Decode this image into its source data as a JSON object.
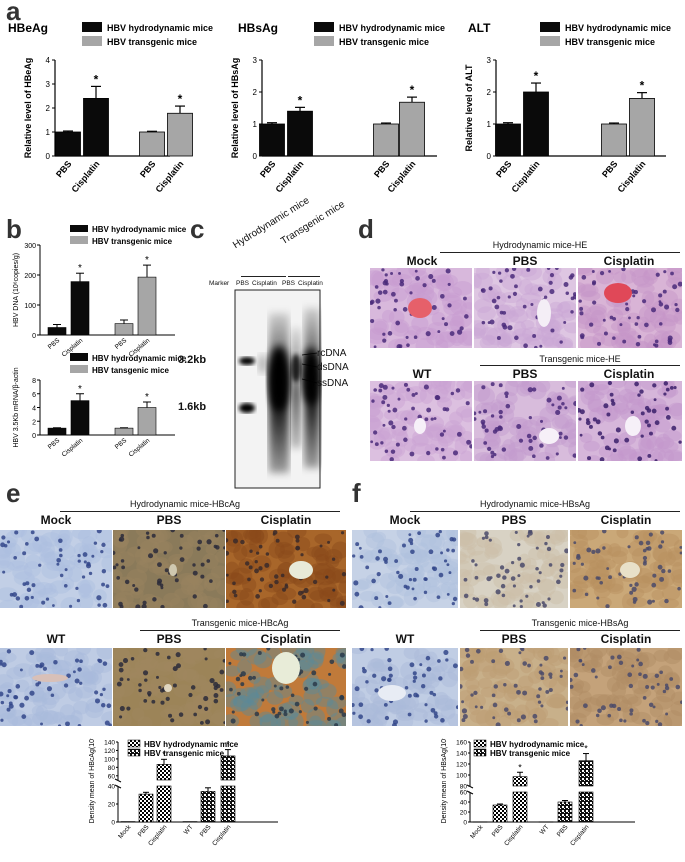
{
  "panels": {
    "a": "a",
    "b": "b",
    "c": "c",
    "d": "d",
    "e": "e",
    "f": "f"
  },
  "colors": {
    "black": "#0a0a0a",
    "gray": "#a6a6a6"
  },
  "chart_data": [
    {
      "type": "bar",
      "id": "a1",
      "title": "HBeAg",
      "ylabel": "Relative level of HBeAg",
      "ylim": [
        0,
        4
      ],
      "yticks": [
        "0",
        "1",
        "2",
        "3",
        "4"
      ],
      "categories": [
        "PBS",
        "Cisplatin",
        "PBS",
        "Cisplatin"
      ],
      "series": [
        {
          "name": "HBV hydrodynamic mice",
          "values": [
            1.0,
            2.4,
            null,
            null
          ],
          "errors": [
            0.04,
            0.5,
            null,
            null
          ]
        },
        {
          "name": "HBV transgenic mice",
          "values": [
            null,
            null,
            1.0,
            1.78
          ],
          "errors": [
            null,
            null,
            0.03,
            0.3
          ]
        }
      ],
      "annotations": [
        "*",
        "*"
      ]
    },
    {
      "type": "bar",
      "id": "a2",
      "title": "HBsAg",
      "ylabel": "Relative level of HBsAg",
      "ylim": [
        0,
        3
      ],
      "yticks": [
        "0",
        "1",
        "2",
        "3"
      ],
      "categories": [
        "PBS",
        "Cisplatin",
        "PBS",
        "Cisplatin"
      ],
      "series": [
        {
          "name": "HBV hydrodynamic mice",
          "values": [
            1.0,
            1.4,
            null,
            null
          ],
          "errors": [
            0.04,
            0.12,
            null,
            null
          ]
        },
        {
          "name": "HBV transgenic mice",
          "values": [
            null,
            null,
            1.0,
            1.68
          ],
          "errors": [
            null,
            null,
            0.03,
            0.16
          ]
        }
      ],
      "annotations": [
        "*",
        "*"
      ]
    },
    {
      "type": "bar",
      "id": "a3",
      "title": "ALT",
      "ylabel": "Relative level of ALT",
      "ylim": [
        0,
        3
      ],
      "yticks": [
        "0",
        "1",
        "2",
        "3"
      ],
      "categories": [
        "PBS",
        "Cisplatin",
        "PBS",
        "Cisplatin"
      ],
      "series": [
        {
          "name": "HBV hydrodynamic mice",
          "values": [
            1.0,
            2.0,
            null,
            null
          ],
          "errors": [
            0.04,
            0.28,
            null,
            null
          ]
        },
        {
          "name": "HBV transgenic mice",
          "values": [
            null,
            null,
            1.0,
            1.8
          ],
          "errors": [
            null,
            null,
            0.03,
            0.18
          ]
        }
      ],
      "annotations": [
        "*",
        "*"
      ]
    },
    {
      "type": "bar",
      "id": "b1",
      "title": "",
      "ylabel": "HBV DNA (10⁶copies/g)",
      "ylim": [
        0,
        300
      ],
      "yticks": [
        "0",
        "100",
        "200",
        "300"
      ],
      "categories": [
        "PBS",
        "Cisplatin",
        "PBS",
        "Cisplatin"
      ],
      "series": [
        {
          "name": "HBV hydrodynamic mice",
          "values": [
            25,
            178,
            null,
            null
          ],
          "errors": [
            10,
            28,
            null,
            null
          ]
        },
        {
          "name": "HBV transgenic mice",
          "values": [
            null,
            null,
            38,
            193
          ],
          "errors": [
            null,
            null,
            12,
            40
          ]
        }
      ],
      "annotations": [
        "*",
        "*"
      ]
    },
    {
      "type": "bar",
      "id": "b2",
      "title": "",
      "ylabel": "HBV 3.5Kb mRNA/β-actin",
      "ylim": [
        0,
        8
      ],
      "yticks": [
        "0",
        "2",
        "4",
        "6",
        "8"
      ],
      "categories": [
        "PBS",
        "Cisplatin",
        "PBS",
        "Cisplatin"
      ],
      "series": [
        {
          "name": "HBV hydrodynamic mice",
          "values": [
            1.0,
            5.0,
            null,
            null
          ],
          "errors": [
            0.05,
            1.0,
            null,
            null
          ]
        },
        {
          "name": "HBV tansgenic mice",
          "values": [
            null,
            null,
            1.0,
            4.0
          ],
          "errors": [
            null,
            null,
            0.05,
            0.8
          ]
        }
      ],
      "annotations": [
        "*",
        "*"
      ]
    },
    {
      "type": "bar",
      "id": "e1",
      "title": "",
      "ylabel": "Density mean of HBcAg(10⁻²)",
      "ylim": [
        0,
        140
      ],
      "broken_axis": [
        40,
        50
      ],
      "yticks": [
        "0",
        "20",
        "40",
        "60",
        "80",
        "100",
        "120",
        "140"
      ],
      "categories": [
        "Mock",
        "PBS",
        "Cisplatin",
        "WT",
        "PBS",
        "Cisplatin"
      ],
      "series": [
        {
          "name": "HBV hydrodynamic mice",
          "values": [
            0.5,
            31,
            87,
            null,
            null,
            null
          ],
          "errors": [
            0,
            2,
            12,
            null,
            null,
            null
          ]
        },
        {
          "name": "HBV transgenic mice",
          "values": [
            null,
            null,
            null,
            0.5,
            34,
            107
          ],
          "errors": [
            null,
            null,
            null,
            0,
            4,
            15
          ]
        }
      ],
      "annotations": [
        "*",
        "*"
      ]
    },
    {
      "type": "bar",
      "id": "f1",
      "title": "",
      "ylabel": "Density mean of HBsAg(10⁻²)",
      "ylim": [
        0,
        160
      ],
      "broken_axis": [
        60,
        80
      ],
      "yticks": [
        "0",
        "20",
        "40",
        "60",
        "80",
        "100",
        "120",
        "140",
        "160"
      ],
      "categories": [
        "Mock",
        "PBS",
        "Cisplatin",
        "WT",
        "PBS",
        "Cisplatin"
      ],
      "series": [
        {
          "name": "HBV hydrodynamic mice",
          "values": [
            0.5,
            34,
            97,
            null,
            null,
            null
          ],
          "errors": [
            0,
            2,
            8,
            null,
            null,
            null
          ]
        },
        {
          "name": "HBV transgenic mice",
          "values": [
            null,
            null,
            null,
            0.5,
            40,
            126
          ],
          "errors": [
            null,
            null,
            null,
            0,
            3,
            13
          ]
        }
      ],
      "annotations": [
        "*",
        "*"
      ]
    }
  ],
  "blot": {
    "header_hydro": "Hydrodynamic mice",
    "header_trans": "Transgenic mice",
    "lanes": [
      "Marker",
      "PBS",
      "Cisplatin",
      "PBS",
      "Cisplatin"
    ],
    "size_markers": [
      "3.2kb",
      "1.6kb"
    ],
    "dna_forms": [
      "rcDNA",
      "dsDNA",
      "ssDNA"
    ]
  },
  "panel_d": {
    "hydro_title": "Hydrodynamic mice-HE",
    "hydro_labels": [
      "Mock",
      "PBS",
      "Cisplatin"
    ],
    "trans_title": "Transgenic mice-HE",
    "trans_labels": [
      "WT",
      "PBS",
      "Cisplatin"
    ]
  },
  "panel_e": {
    "hydro_title": "Hydrodynamic mice-HBcAg",
    "hydro_labels": [
      "Mock",
      "PBS",
      "Cisplatin"
    ],
    "trans_title": "Transgenic mice-HBcAg",
    "trans_labels": [
      "WT",
      "PBS",
      "Cisplatin"
    ]
  },
  "panel_f": {
    "hydro_title": "Hydrodynamic mice-HBsAg",
    "hydro_labels": [
      "Mock",
      "PBS",
      "Cisplatin"
    ],
    "trans_title": "Transgenic mice-HBsAg",
    "trans_labels": [
      "WT",
      "PBS",
      "Cisplatin"
    ]
  }
}
